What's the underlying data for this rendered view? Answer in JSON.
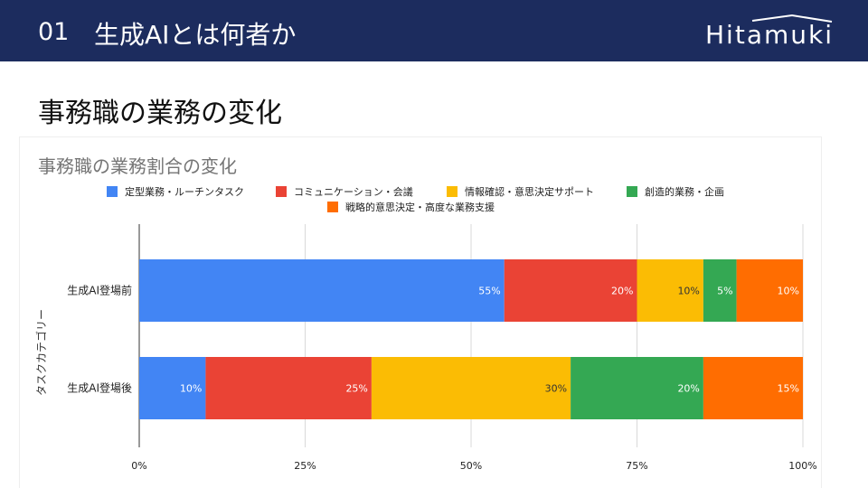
{
  "header": {
    "number": "01",
    "title": "生成AIとは何者か",
    "logo_text": "Hitamuki"
  },
  "slide": {
    "subtitle": "事務職の業務の変化"
  },
  "chart_data": {
    "type": "bar",
    "orientation": "horizontal",
    "stacked": true,
    "title": "事務職の業務割合の変化",
    "ylabel": "タスクカテゴリー",
    "xlabel": "",
    "categories": [
      "生成AI登場前",
      "生成AI登場後"
    ],
    "xlim": [
      0,
      100
    ],
    "xticks": [
      "0%",
      "25%",
      "50%",
      "75%",
      "100%"
    ],
    "series": [
      {
        "name": "定型業務・ルーチンタスク",
        "color": "#4285f4",
        "values": [
          55,
          10
        ]
      },
      {
        "name": "コミュニケーション・会議",
        "color": "#ea4335",
        "values": [
          20,
          25
        ]
      },
      {
        "name": "情報確認・意思決定サポート",
        "color": "#fbbc04",
        "values": [
          10,
          30
        ]
      },
      {
        "name": "創造的業務・企画",
        "color": "#34a853",
        "values": [
          5,
          20
        ]
      },
      {
        "name": "戦略的意思決定・高度な業務支援",
        "color": "#ff6d01",
        "values": [
          10,
          15
        ]
      }
    ],
    "data_labels": [
      [
        "55%",
        "20%",
        "10%",
        "5%",
        "10%"
      ],
      [
        "10%",
        "25%",
        "30%",
        "20%",
        "15%"
      ]
    ],
    "legend_position": "top-center",
    "grid": true
  }
}
